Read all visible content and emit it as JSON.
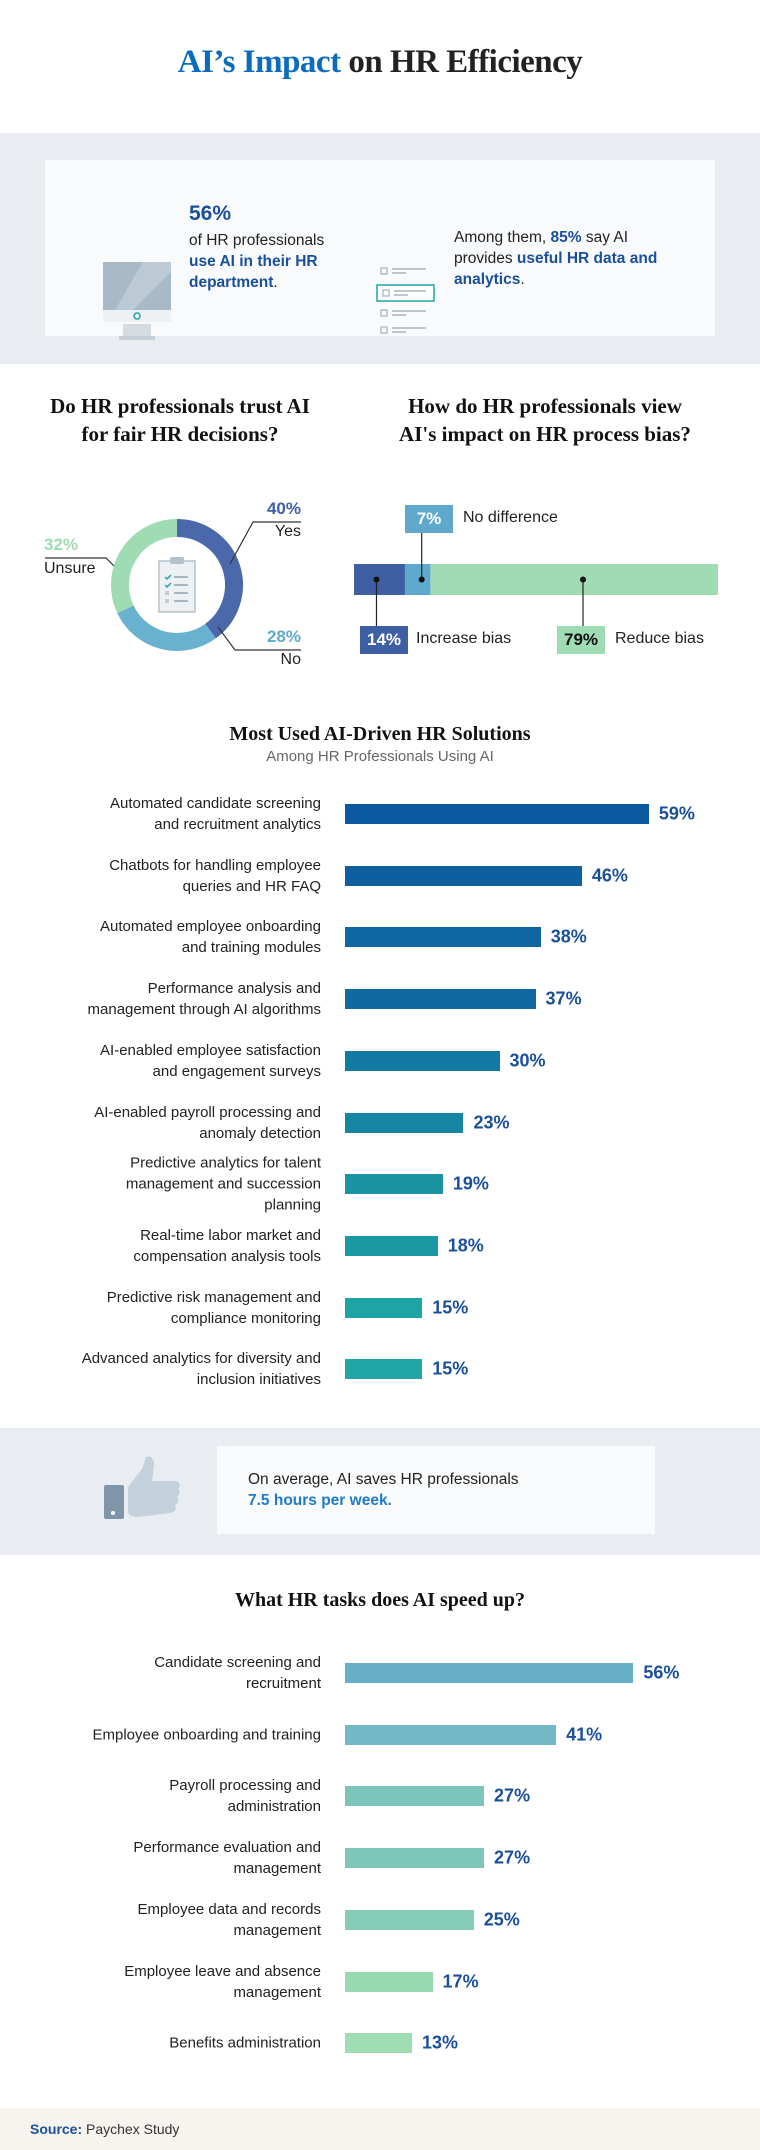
{
  "title": {
    "accent": "AI’s Impact",
    "rest": " on HR Efficiency"
  },
  "stats": {
    "stat1": {
      "value": "56%",
      "line1": "of HR professionals",
      "highlight": "use AI in their HR department",
      "end": "."
    },
    "stat2": {
      "pre": "Among them, ",
      "value": "85%",
      "mid": " say AI provides ",
      "highlight": "useful HR data and analytics",
      "end": "."
    }
  },
  "chart_data": [
    {
      "type": "pie",
      "title": "Do HR professionals trust AI for fair HR decisions?",
      "slices": [
        {
          "label": "Yes",
          "value": 40,
          "value_label": "40%",
          "color": "#4a68aa"
        },
        {
          "label": "No",
          "value": 28,
          "value_label": "28%",
          "color": "#69b2cf"
        },
        {
          "label": "Unsure",
          "value": 32,
          "value_label": "32%",
          "color": "#9fdcb4"
        }
      ]
    },
    {
      "type": "bar",
      "stacked": true,
      "title": "How do HR professionals view AI's impact on HR process bias?",
      "segments": [
        {
          "label": "Increase bias",
          "value": 14,
          "value_label": "14%",
          "color": "#3f5fa5"
        },
        {
          "label": "No difference",
          "value": 7,
          "value_label": "7%",
          "color": "#5fa9cf"
        },
        {
          "label": "Reduce bias",
          "value": 79,
          "value_label": "79%",
          "color": "#9fdcb4"
        }
      ]
    },
    {
      "type": "bar",
      "orientation": "horizontal",
      "title": "Most Used AI-Driven HR Solutions",
      "subtitle": "Among HR Professionals Using AI",
      "categories": [
        "Automated candidate screening and recruitment analytics",
        "Chatbots for handling employee queries and HR FAQ",
        "Automated employee onboarding and training modules",
        "Performance analysis and management through AI algorithms",
        "AI-enabled employee satisfaction and engagement surveys",
        "AI-enabled payroll processing and anomaly detection",
        "Predictive analytics for talent management and succession planning",
        "Real-time labor market and compensation analysis tools",
        "Predictive risk management and compliance monitoring",
        "Advanced analytics for diversity and inclusion initiatives"
      ],
      "values": [
        59,
        46,
        38,
        37,
        30,
        23,
        19,
        18,
        15,
        15
      ],
      "value_labels": [
        "59%",
        "46%",
        "38%",
        "37%",
        "30%",
        "23%",
        "19%",
        "18%",
        "15%",
        "15%"
      ],
      "colors": [
        "#0b5a9f",
        "#0d5fa0",
        "#0f66a2",
        "#1069a3",
        "#1278a4",
        "#1585a3",
        "#1a93a2",
        "#1b98a3",
        "#1ea4a4",
        "#1fa6a5"
      ]
    },
    {
      "type": "bar",
      "orientation": "horizontal",
      "title": "What HR tasks does AI speed up?",
      "categories": [
        "Candidate screening and recruitment",
        "Employee onboarding and training",
        "Payroll processing and administration",
        "Performance evaluation and management",
        "Employee data and records management",
        "Employee leave and absence management",
        "Benefits administration"
      ],
      "values": [
        56,
        41,
        27,
        27,
        25,
        17,
        13
      ],
      "value_labels": [
        "56%",
        "41%",
        "27%",
        "27%",
        "25%",
        "17%",
        "13%"
      ],
      "colors": [
        "#67afc9",
        "#72b8c5",
        "#7dc4bb",
        "#7ec6ba",
        "#85cbb7",
        "#97dab0",
        "#9fdeb2"
      ]
    }
  ],
  "savings": {
    "line1": "On average, AI saves HR professionals",
    "highlight": "7.5 hours per week."
  },
  "footer": {
    "source_label": "Source:",
    "source": " Paychex Study"
  },
  "colors": {
    "accent": "#1a4f9c",
    "band": "#e9ecf1",
    "footer": "#f7f3ee"
  },
  "icons": [
    "monitor-icon",
    "list-icon",
    "clipboard-icon",
    "thumbs-up-icon"
  ]
}
